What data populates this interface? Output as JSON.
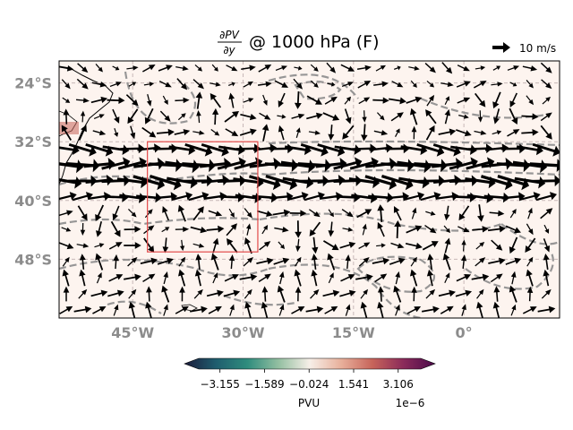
{
  "chart_data": {
    "type": "quiver-map",
    "title_fraction_num": "∂PV",
    "title_fraction_den": "∂y",
    "title_suffix": "@ 1000 hPa (F)",
    "quiver_key_label": "10 m/s",
    "lon_ticks": [
      {
        "value": -45,
        "label": "45°W"
      },
      {
        "value": -30,
        "label": "30°W"
      },
      {
        "value": -15,
        "label": "15°W"
      },
      {
        "value": 0,
        "label": "0°"
      }
    ],
    "lat_ticks": [
      {
        "value": -24,
        "label": "24°S"
      },
      {
        "value": -32,
        "label": "32°S"
      },
      {
        "value": -40,
        "label": "40°S"
      },
      {
        "value": -48,
        "label": "48°S"
      }
    ],
    "xlim": [
      -55,
      13
    ],
    "ylim": [
      -56,
      -21
    ],
    "region_box": {
      "lon": [
        -43,
        -28
      ],
      "lat": [
        -47,
        -32
      ]
    },
    "colorbar": {
      "label": "PVU",
      "exponent": "1e−6",
      "range": [
        -3.9,
        3.9
      ],
      "ticks": [
        {
          "value": -3.155,
          "label": "−3.155"
        },
        {
          "value": -1.589,
          "label": "−1.589"
        },
        {
          "value": -0.024,
          "label": "−0.024"
        },
        {
          "value": 1.541,
          "label": "1.541"
        },
        {
          "value": 3.106,
          "label": "3.106"
        }
      ],
      "colors": [
        "#1b1b3a",
        "#1f5d6e",
        "#2e8c7d",
        "#93bfa1",
        "#f7efe8",
        "#e8b09b",
        "#c7645a",
        "#8a2a5a",
        "#4a0a4a"
      ]
    },
    "colors": {
      "field_background": "#fdf4ef",
      "region_box": "#e34a4a",
      "contour": "#8c8c8c",
      "grid": "#c8b8b8",
      "tick_label": "#8c8c8c",
      "arrow": "#000000",
      "coast": "#000000"
    }
  }
}
